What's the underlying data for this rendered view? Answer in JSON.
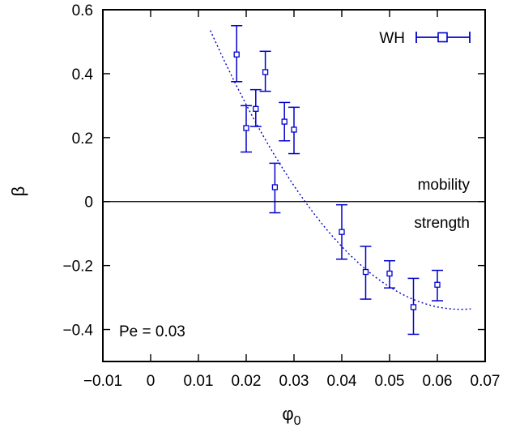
{
  "chart_data": {
    "type": "scatter",
    "xlabel": "φ",
    "xlabel_subscript": "0",
    "ylabel": "β",
    "xlim": [
      -0.01,
      0.07
    ],
    "ylim": [
      -0.5,
      0.6
    ],
    "xticks": [
      -0.01,
      0,
      0.01,
      0.02,
      0.03,
      0.04,
      0.05,
      0.06,
      0.07
    ],
    "xtick_labels": [
      "−0.01",
      "0",
      "0.01",
      "0.02",
      "0.03",
      "0.04",
      "0.05",
      "0.06",
      "0.07"
    ],
    "yticks": [
      -0.4,
      -0.2,
      0,
      0.2,
      0.4,
      0.6
    ],
    "ytick_labels": [
      "−0.4",
      "−0.2",
      "0",
      "0.2",
      "0.4",
      "0.6"
    ],
    "grid": false,
    "legend_position": "top-right",
    "series": [
      {
        "name": "WH",
        "color": "#0000cc",
        "marker": "open-square",
        "errorbars": true,
        "points": [
          {
            "x": 0.018,
            "y": 0.46,
            "ylow": 0.375,
            "yhigh": 0.55
          },
          {
            "x": 0.02,
            "y": 0.23,
            "ylow": 0.155,
            "yhigh": 0.3
          },
          {
            "x": 0.022,
            "y": 0.29,
            "ylow": 0.235,
            "yhigh": 0.35
          },
          {
            "x": 0.024,
            "y": 0.405,
            "ylow": 0.345,
            "yhigh": 0.47
          },
          {
            "x": 0.026,
            "y": 0.045,
            "ylow": -0.035,
            "yhigh": 0.12
          },
          {
            "x": 0.028,
            "y": 0.25,
            "ylow": 0.19,
            "yhigh": 0.31
          },
          {
            "x": 0.03,
            "y": 0.225,
            "ylow": 0.15,
            "yhigh": 0.295
          },
          {
            "x": 0.04,
            "y": -0.095,
            "ylow": -0.18,
            "yhigh": -0.01
          },
          {
            "x": 0.045,
            "y": -0.22,
            "ylow": -0.305,
            "yhigh": -0.14
          },
          {
            "x": 0.05,
            "y": -0.225,
            "ylow": -0.27,
            "yhigh": -0.185
          },
          {
            "x": 0.055,
            "y": -0.33,
            "ylow": -0.415,
            "yhigh": -0.24
          },
          {
            "x": 0.06,
            "y": -0.26,
            "ylow": -0.31,
            "yhigh": -0.215
          }
        ]
      }
    ],
    "fit_curve": {
      "style": "dotted",
      "color": "#0000cc",
      "x_range": [
        0.0125,
        0.067
      ],
      "coefficients": [
        1.0013,
        -41.27,
        318.2
      ]
    },
    "reference_line": {
      "y": 0,
      "color": "#000000"
    },
    "annotations": {
      "above_zero": "mobility",
      "below_zero": "strength",
      "parameter": "Pe = 0.03"
    }
  }
}
